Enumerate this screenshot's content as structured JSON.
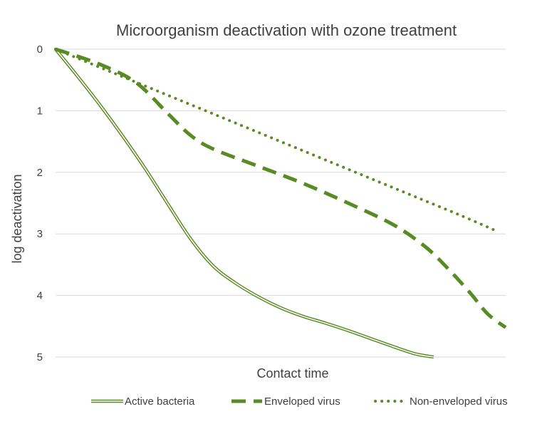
{
  "chart_data": {
    "type": "line",
    "title": "Microorganism deactivation with ozone treatment",
    "xlabel": "Contact time",
    "ylabel": "log deactivation",
    "x_tick_labels": [],
    "y_ticks": [
      0,
      1,
      2,
      3,
      4,
      5
    ],
    "ylim": [
      0,
      5
    ],
    "y_inverted": true,
    "xlim": [
      0,
      1
    ],
    "grid": true,
    "legend_position": "bottom",
    "series": [
      {
        "name": "Active bacteria",
        "style": "double-line",
        "color": "#5a8a23",
        "x": [
          0,
          0.05,
          0.1,
          0.15,
          0.2,
          0.25,
          0.3,
          0.35,
          0.4,
          0.45,
          0.5,
          0.55,
          0.6,
          0.65,
          0.7,
          0.75,
          0.8,
          0.84
        ],
        "y": [
          0,
          0.45,
          0.92,
          1.42,
          1.95,
          2.52,
          3.08,
          3.52,
          3.8,
          4.02,
          4.2,
          4.34,
          4.45,
          4.57,
          4.7,
          4.83,
          4.95,
          5.0
        ]
      },
      {
        "name": "Enveloped virus",
        "style": "dashed",
        "color": "#5a8a23",
        "x": [
          0,
          0.1,
          0.18,
          0.25,
          0.3,
          0.35,
          0.45,
          0.55,
          0.65,
          0.75,
          0.82,
          0.87,
          0.92,
          0.96,
          1.0
        ],
        "y": [
          0,
          0.25,
          0.55,
          1.05,
          1.4,
          1.62,
          1.9,
          2.18,
          2.5,
          2.85,
          3.2,
          3.55,
          3.95,
          4.3,
          4.52
        ]
      },
      {
        "name": "Non-enveloped virus",
        "style": "dotted",
        "color": "#5a8a23",
        "x": [
          0,
          0.1,
          0.2,
          0.3,
          0.4,
          0.5,
          0.6,
          0.7,
          0.8,
          0.9,
          0.985
        ],
        "y": [
          0,
          0.3,
          0.6,
          0.9,
          1.2,
          1.5,
          1.8,
          2.1,
          2.4,
          2.7,
          2.97
        ]
      }
    ]
  }
}
